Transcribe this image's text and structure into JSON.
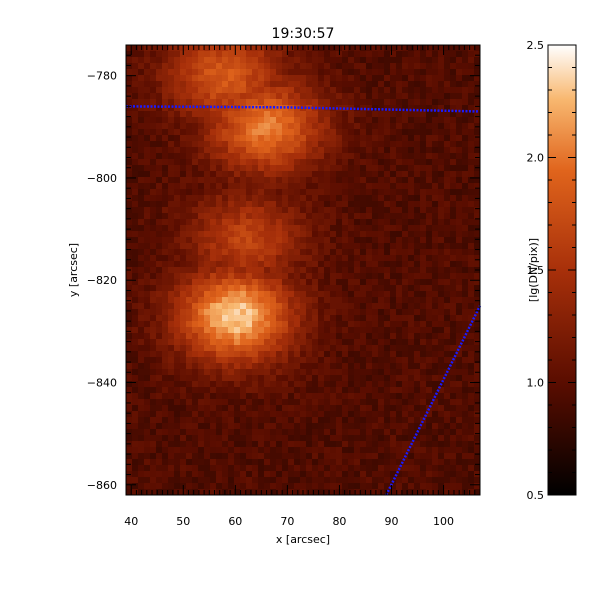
{
  "chart_data": {
    "type": "heatmap",
    "title": "19:30:57",
    "xlabel": "x [arcsec]",
    "ylabel": "y [arcsec]",
    "xlim": [
      39,
      107
    ],
    "ylim": [
      -862,
      -774
    ],
    "x_ticks": [
      40,
      50,
      60,
      70,
      80,
      90,
      100
    ],
    "y_ticks": [
      -780,
      -800,
      -820,
      -840,
      -860
    ],
    "grid": false,
    "colormap": "red-temperature",
    "colorbar": {
      "label": "[lg(DN/pix)]",
      "range": [
        0.5,
        2.5
      ],
      "ticks": [
        0.5,
        1.0,
        1.5,
        2.0,
        2.5
      ],
      "tick_labels": [
        "0.5",
        "1.0",
        "1.5",
        "2.0",
        "2.5"
      ]
    },
    "background_level": 0.95,
    "bright_features": [
      {
        "x": 60,
        "y": -827,
        "peak": 2.35
      },
      {
        "x": 66,
        "y": -790,
        "peak": 2.05
      },
      {
        "x": 58,
        "y": -780,
        "peak": 1.85
      },
      {
        "x": 62,
        "y": -812,
        "peak": 1.65
      }
    ],
    "overlay_lines": [
      {
        "name": "",
        "color": "#1a1aff",
        "points": [
          [
            39,
            -786
          ],
          [
            70,
            -786.2
          ],
          [
            107,
            -787
          ]
        ]
      },
      {
        "name": "",
        "color": "#1a1aff",
        "points": [
          [
            89,
            -862
          ],
          [
            107,
            -825
          ]
        ]
      }
    ]
  }
}
